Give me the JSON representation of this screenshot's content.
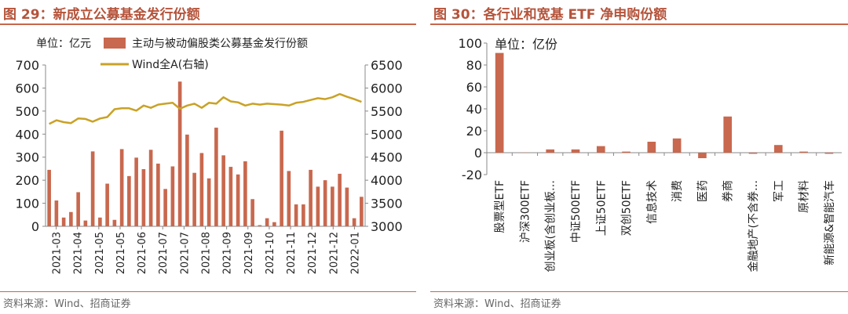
{
  "left": {
    "title": "图 29：新成立公募基金发行份额",
    "source": "资料来源：Wind、招商证券",
    "chart_data": {
      "type": "bar",
      "unit_label": "单位：亿元",
      "xtick_labels": [
        "2021-03",
        "2021-04",
        "2021-05",
        "2021-05",
        "2021-06",
        "2021-07",
        "2021-07",
        "2021-08",
        "2021-09",
        "2021-09",
        "2021-10",
        "2021-11",
        "2021-12",
        "2021-12",
        "2022-01"
      ],
      "y_ticks": [
        0,
        100,
        200,
        300,
        400,
        500,
        600,
        700
      ],
      "y2_ticks": [
        3000,
        3500,
        4000,
        4500,
        5000,
        5500,
        6000,
        6500
      ],
      "ylim": [
        0,
        700
      ],
      "y2lim": [
        3000,
        6500
      ],
      "series": [
        {
          "name": "主动与被动偏股类公募基金发行份额",
          "type": "bar",
          "axis": "left",
          "color": "#c8684e",
          "values": [
            245,
            112,
            38,
            62,
            148,
            25,
            325,
            38,
            185,
            28,
            335,
            218,
            298,
            248,
            332,
            272,
            162,
            260,
            628,
            398,
            232,
            318,
            208,
            428,
            308,
            258,
            225,
            282,
            118,
            5,
            35,
            18,
            415,
            240,
            95,
            95,
            245,
            172,
            200,
            172,
            228,
            168,
            35,
            128
          ]
        },
        {
          "name": "Wind全A(右轴)",
          "type": "line",
          "axis": "right",
          "color": "#c9a227",
          "values": [
            5220,
            5300,
            5260,
            5240,
            5340,
            5330,
            5270,
            5340,
            5370,
            5540,
            5560,
            5560,
            5510,
            5620,
            5570,
            5640,
            5660,
            5680,
            5550,
            5620,
            5660,
            5570,
            5680,
            5660,
            5800,
            5710,
            5690,
            5620,
            5660,
            5640,
            5660,
            5650,
            5640,
            5620,
            5680,
            5700,
            5740,
            5780,
            5760,
            5800,
            5870,
            5810,
            5760,
            5700
          ]
        }
      ]
    }
  },
  "right": {
    "title": "图 30：各行业和宽基 ETF 净申购份额",
    "source": "资料来源：Wind、招商证券",
    "chart_data": {
      "type": "bar",
      "unit_label": "单位：亿份",
      "categories": [
        "股票型ETF",
        "沪深300ETF",
        "创业板(含创业板…",
        "中证500ETF",
        "上证50ETF",
        "双创50ETF",
        "信息技术",
        "消费",
        "医药",
        "券商",
        "金融地产(不含券…",
        "军工",
        "原材料",
        "新能源&智能汽车"
      ],
      "values": [
        91,
        0,
        3,
        3,
        6,
        1,
        10,
        13,
        -5,
        33,
        -1,
        7,
        1,
        -1
      ],
      "y_ticks": [
        -20,
        0,
        20,
        40,
        60,
        80,
        100
      ],
      "ylim": [
        -20,
        100
      ],
      "color": "#c8684e"
    }
  }
}
